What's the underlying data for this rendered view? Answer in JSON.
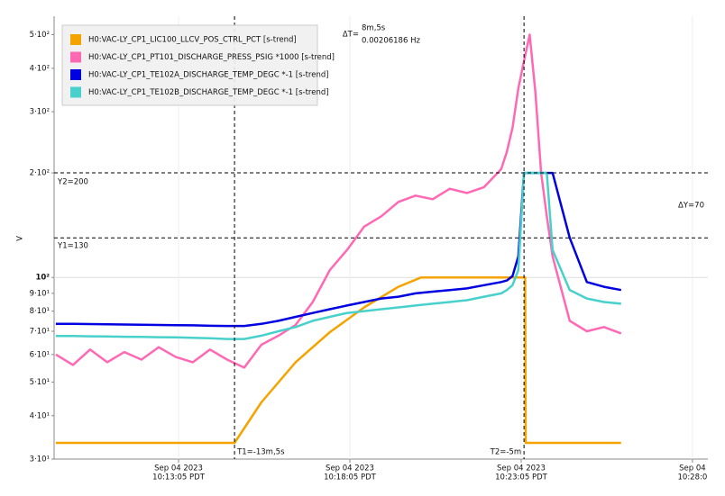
{
  "chart_data": {
    "type": "line",
    "ylabel": "V",
    "log_scale_y": true,
    "xlim": [
      "2023-09-04T10:09:27",
      "2023-09-04T10:28:32"
    ],
    "xticks": [
      {
        "value": "2023-09-04T10:13:05",
        "label": [
          "Sep 04 2023",
          "10:13:05 PDT"
        ]
      },
      {
        "value": "2023-09-04T10:18:05",
        "label": [
          "Sep 04 2023",
          "10:18:05 PDT"
        ]
      },
      {
        "value": "2023-09-04T10:23:05",
        "label": [
          "Sep 04 2023",
          "10:23:05 PDT"
        ]
      },
      {
        "value": "2023-09-04T10:28:05",
        "label": [
          "Sep 04",
          "10:28:0"
        ]
      }
    ],
    "ylim": [
      30,
      565
    ],
    "yticks": [
      {
        "value": 30,
        "label": "3·10¹"
      },
      {
        "value": 40,
        "label": "4·10¹"
      },
      {
        "value": 50,
        "label": "5·10¹"
      },
      {
        "value": 60,
        "label": "6·10¹"
      },
      {
        "value": 70,
        "label": "7·10¹"
      },
      {
        "value": 80,
        "label": "8·10¹"
      },
      {
        "value": 90,
        "label": "9·10¹"
      },
      {
        "value": 100,
        "label": "10²"
      },
      {
        "value": 200,
        "label": "2·10²"
      },
      {
        "value": 300,
        "label": "3·10²"
      },
      {
        "value": 400,
        "label": "4·10²"
      },
      {
        "value": 500,
        "label": "5·10²"
      }
    ],
    "grid": true,
    "legend_position": "upper left",
    "cursors": {
      "t1": {
        "value": "2023-09-04T10:14:43",
        "label": "T1=-13m,5s"
      },
      "t2": {
        "value": "2023-09-04T10:23:10",
        "label": "T2=-5m"
      },
      "y1": {
        "value": 130,
        "label": "Y1=130"
      },
      "y2": {
        "value": 200,
        "label": "Y2=200"
      },
      "dy_label": "ΔY=70",
      "dt_label": "ΔT=",
      "dt_value": "8m,5s",
      "dt_freq": "0.00206186 Hz"
    },
    "x": [
      "2023-09-04T10:09:30",
      "2023-09-04T10:10:00",
      "2023-09-04T10:10:30",
      "2023-09-04T10:11:00",
      "2023-09-04T10:11:30",
      "2023-09-04T10:12:00",
      "2023-09-04T10:12:30",
      "2023-09-04T10:13:00",
      "2023-09-04T10:13:30",
      "2023-09-04T10:14:00",
      "2023-09-04T10:14:30",
      "2023-09-04T10:15:00",
      "2023-09-04T10:15:30",
      "2023-09-04T10:16:00",
      "2023-09-04T10:16:30",
      "2023-09-04T10:17:00",
      "2023-09-04T10:17:30",
      "2023-09-04T10:18:00",
      "2023-09-04T10:18:30",
      "2023-09-04T10:19:00",
      "2023-09-04T10:19:30",
      "2023-09-04T10:20:00",
      "2023-09-04T10:20:30",
      "2023-09-04T10:21:00",
      "2023-09-04T10:21:30",
      "2023-09-04T10:22:00",
      "2023-09-04T10:22:30",
      "2023-09-04T10:22:40",
      "2023-09-04T10:22:50",
      "2023-09-04T10:23:00",
      "2023-09-04T10:23:10",
      "2023-09-04T10:23:20",
      "2023-09-04T10:23:30",
      "2023-09-04T10:23:40",
      "2023-09-04T10:23:50",
      "2023-09-04T10:24:00",
      "2023-09-04T10:24:30",
      "2023-09-04T10:25:00",
      "2023-09-04T10:25:30",
      "2023-09-04T10:26:00"
    ],
    "series": [
      {
        "name": "H0:VAC-LY_CP1_LIC100_LLCV_POS_CTRL_PCT [s-trend]",
        "color": "#f5a300",
        "x": [
          "2023-09-04T10:09:30",
          "2023-09-04T10:14:43",
          "2023-09-04T10:15:30",
          "2023-09-04T10:16:30",
          "2023-09-04T10:17:30",
          "2023-09-04T10:18:30",
          "2023-09-04T10:19:30",
          "2023-09-04T10:20:10",
          "2023-09-04T10:23:12",
          "2023-09-04T10:23:13",
          "2023-09-04T10:26:00"
        ],
        "values": [
          33.4,
          33.4,
          43.7,
          57,
          69.6,
          82,
          94,
          100,
          100,
          33.4,
          33.4
        ]
      },
      {
        "name": "H0:VAC-LY_CP1_PT101_DISCHARGE_PRESS_PSIG *1000 [s-trend]",
        "color": "#ff69b4",
        "values": [
          60,
          56,
          62,
          57,
          61,
          58,
          63,
          59,
          57,
          62,
          58,
          55,
          64,
          68,
          73,
          85,
          105,
          120,
          140,
          150,
          165,
          172,
          168,
          180,
          175,
          182,
          205,
          230,
          270,
          350,
          420,
          500,
          340,
          200,
          150,
          115,
          75,
          70,
          72,
          69
        ]
      },
      {
        "name": "H0:VAC-LY_CP1_TE102A_DISCHARGE_TEMP_DEGC *-1 [s-trend]",
        "color": "#0000e0",
        "values": [
          73.5,
          73.5,
          73.4,
          73.3,
          73.2,
          73.1,
          73,
          72.9,
          72.8,
          72.6,
          72.5,
          72.5,
          73.5,
          75,
          77,
          79,
          81,
          83,
          85,
          87,
          88,
          90,
          91,
          92,
          93,
          95,
          97,
          98,
          101,
          115,
          200,
          200,
          200,
          200,
          200,
          200,
          130,
          97,
          94,
          92
        ]
      },
      {
        "name": "H0:VAC-LY_CP1_TE102B_DISCHARGE_TEMP_DEGC *-1 [s-trend]",
        "color": "#48d1cc",
        "values": [
          67.8,
          67.8,
          67.7,
          67.6,
          67.5,
          67.4,
          67.3,
          67.2,
          67,
          66.8,
          66.5,
          66.5,
          68,
          70,
          72,
          75,
          77,
          79,
          80,
          81,
          82,
          83,
          84,
          85,
          86,
          88,
          90,
          92,
          95,
          105,
          200,
          200,
          200,
          200,
          200,
          120,
          92,
          87,
          85,
          84
        ]
      }
    ]
  }
}
